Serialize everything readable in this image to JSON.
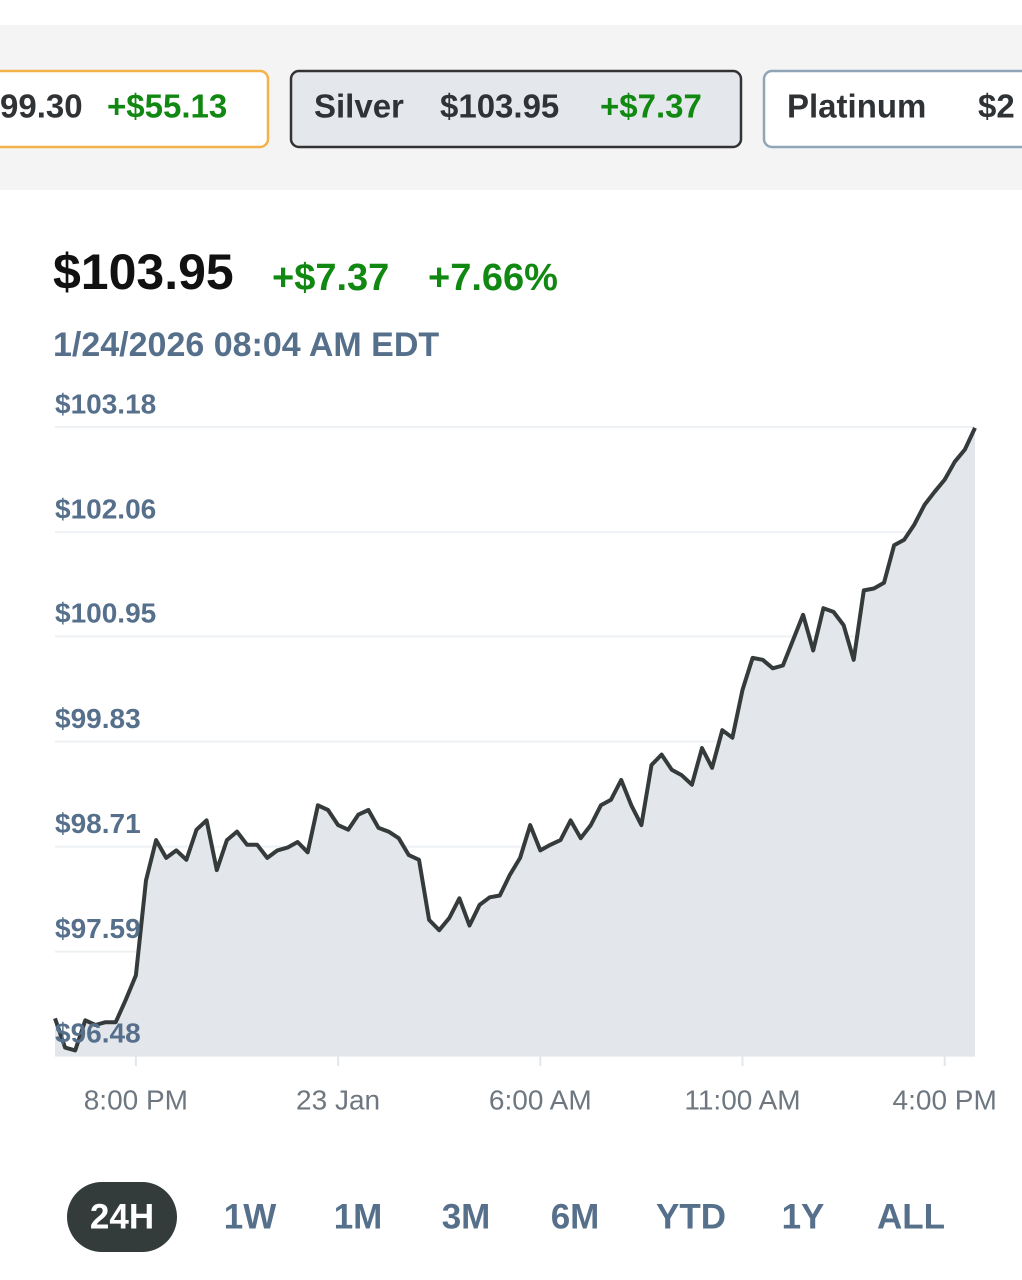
{
  "tabs": [
    {
      "price": "99.30",
      "change": "+$55.13"
    },
    {
      "name": "Silver",
      "price": "$103.95",
      "change": "+$7.37"
    },
    {
      "name": "Platinum",
      "price": "$2"
    }
  ],
  "quote": {
    "price": "$103.95",
    "change": "+$7.37",
    "percent": "+7.66%",
    "timestamp": "1/24/2026 08:04 AM EDT"
  },
  "chart_data": {
    "type": "area",
    "values": [
      96.88,
      96.57,
      96.54,
      96.86,
      96.81,
      96.84,
      96.84,
      97.08,
      97.34,
      98.35,
      98.78,
      98.59,
      98.67,
      98.57,
      98.89,
      98.99,
      98.46,
      98.78,
      98.87,
      98.73,
      98.73,
      98.59,
      98.67,
      98.7,
      98.76,
      98.65,
      99.15,
      99.1,
      98.94,
      98.89,
      99.05,
      99.1,
      98.91,
      98.87,
      98.8,
      98.62,
      98.57,
      97.93,
      97.82,
      97.95,
      98.16,
      97.87,
      98.09,
      98.17,
      98.19,
      98.41,
      98.59,
      98.94,
      98.67,
      98.73,
      98.78,
      98.99,
      98.8,
      98.94,
      99.15,
      99.21,
      99.42,
      99.15,
      98.94,
      99.58,
      99.69,
      99.53,
      99.47,
      99.37,
      99.76,
      99.55,
      99.95,
      99.87,
      100.38,
      100.72,
      100.7,
      100.61,
      100.64,
      100.91,
      101.18,
      100.8,
      101.25,
      101.21,
      101.07,
      100.7,
      101.44,
      101.46,
      101.52,
      101.92,
      101.98,
      102.14,
      102.35,
      102.49,
      102.62,
      102.81,
      102.94,
      103.17
    ],
    "xlim": [
      0,
      91
    ],
    "xticks": [
      {
        "value": 8,
        "label": "8:00 PM"
      },
      {
        "value": 28,
        "label": "23 Jan"
      },
      {
        "value": 48,
        "label": "6:00 AM"
      },
      {
        "value": 68,
        "label": "11:00 AM"
      },
      {
        "value": 88,
        "label": "4:00 PM"
      }
    ],
    "ylim": [
      96.48,
      103.18
    ],
    "yticks": [
      {
        "value": 103.18,
        "label": "$103.18"
      },
      {
        "value": 102.06,
        "label": "$102.06"
      },
      {
        "value": 100.95,
        "label": "$100.95"
      },
      {
        "value": 99.83,
        "label": "$99.83"
      },
      {
        "value": 98.71,
        "label": "$98.71"
      },
      {
        "value": 97.59,
        "label": "$97.59"
      },
      {
        "value": 96.48,
        "label": "$96.48"
      }
    ],
    "color": "#353b3b",
    "fill": "#e3e7eb",
    "grid": true
  },
  "ranges": {
    "options": [
      "24H",
      "1W",
      "1M",
      "3M",
      "6M",
      "YTD",
      "1Y",
      "ALL"
    ],
    "active": 0
  }
}
